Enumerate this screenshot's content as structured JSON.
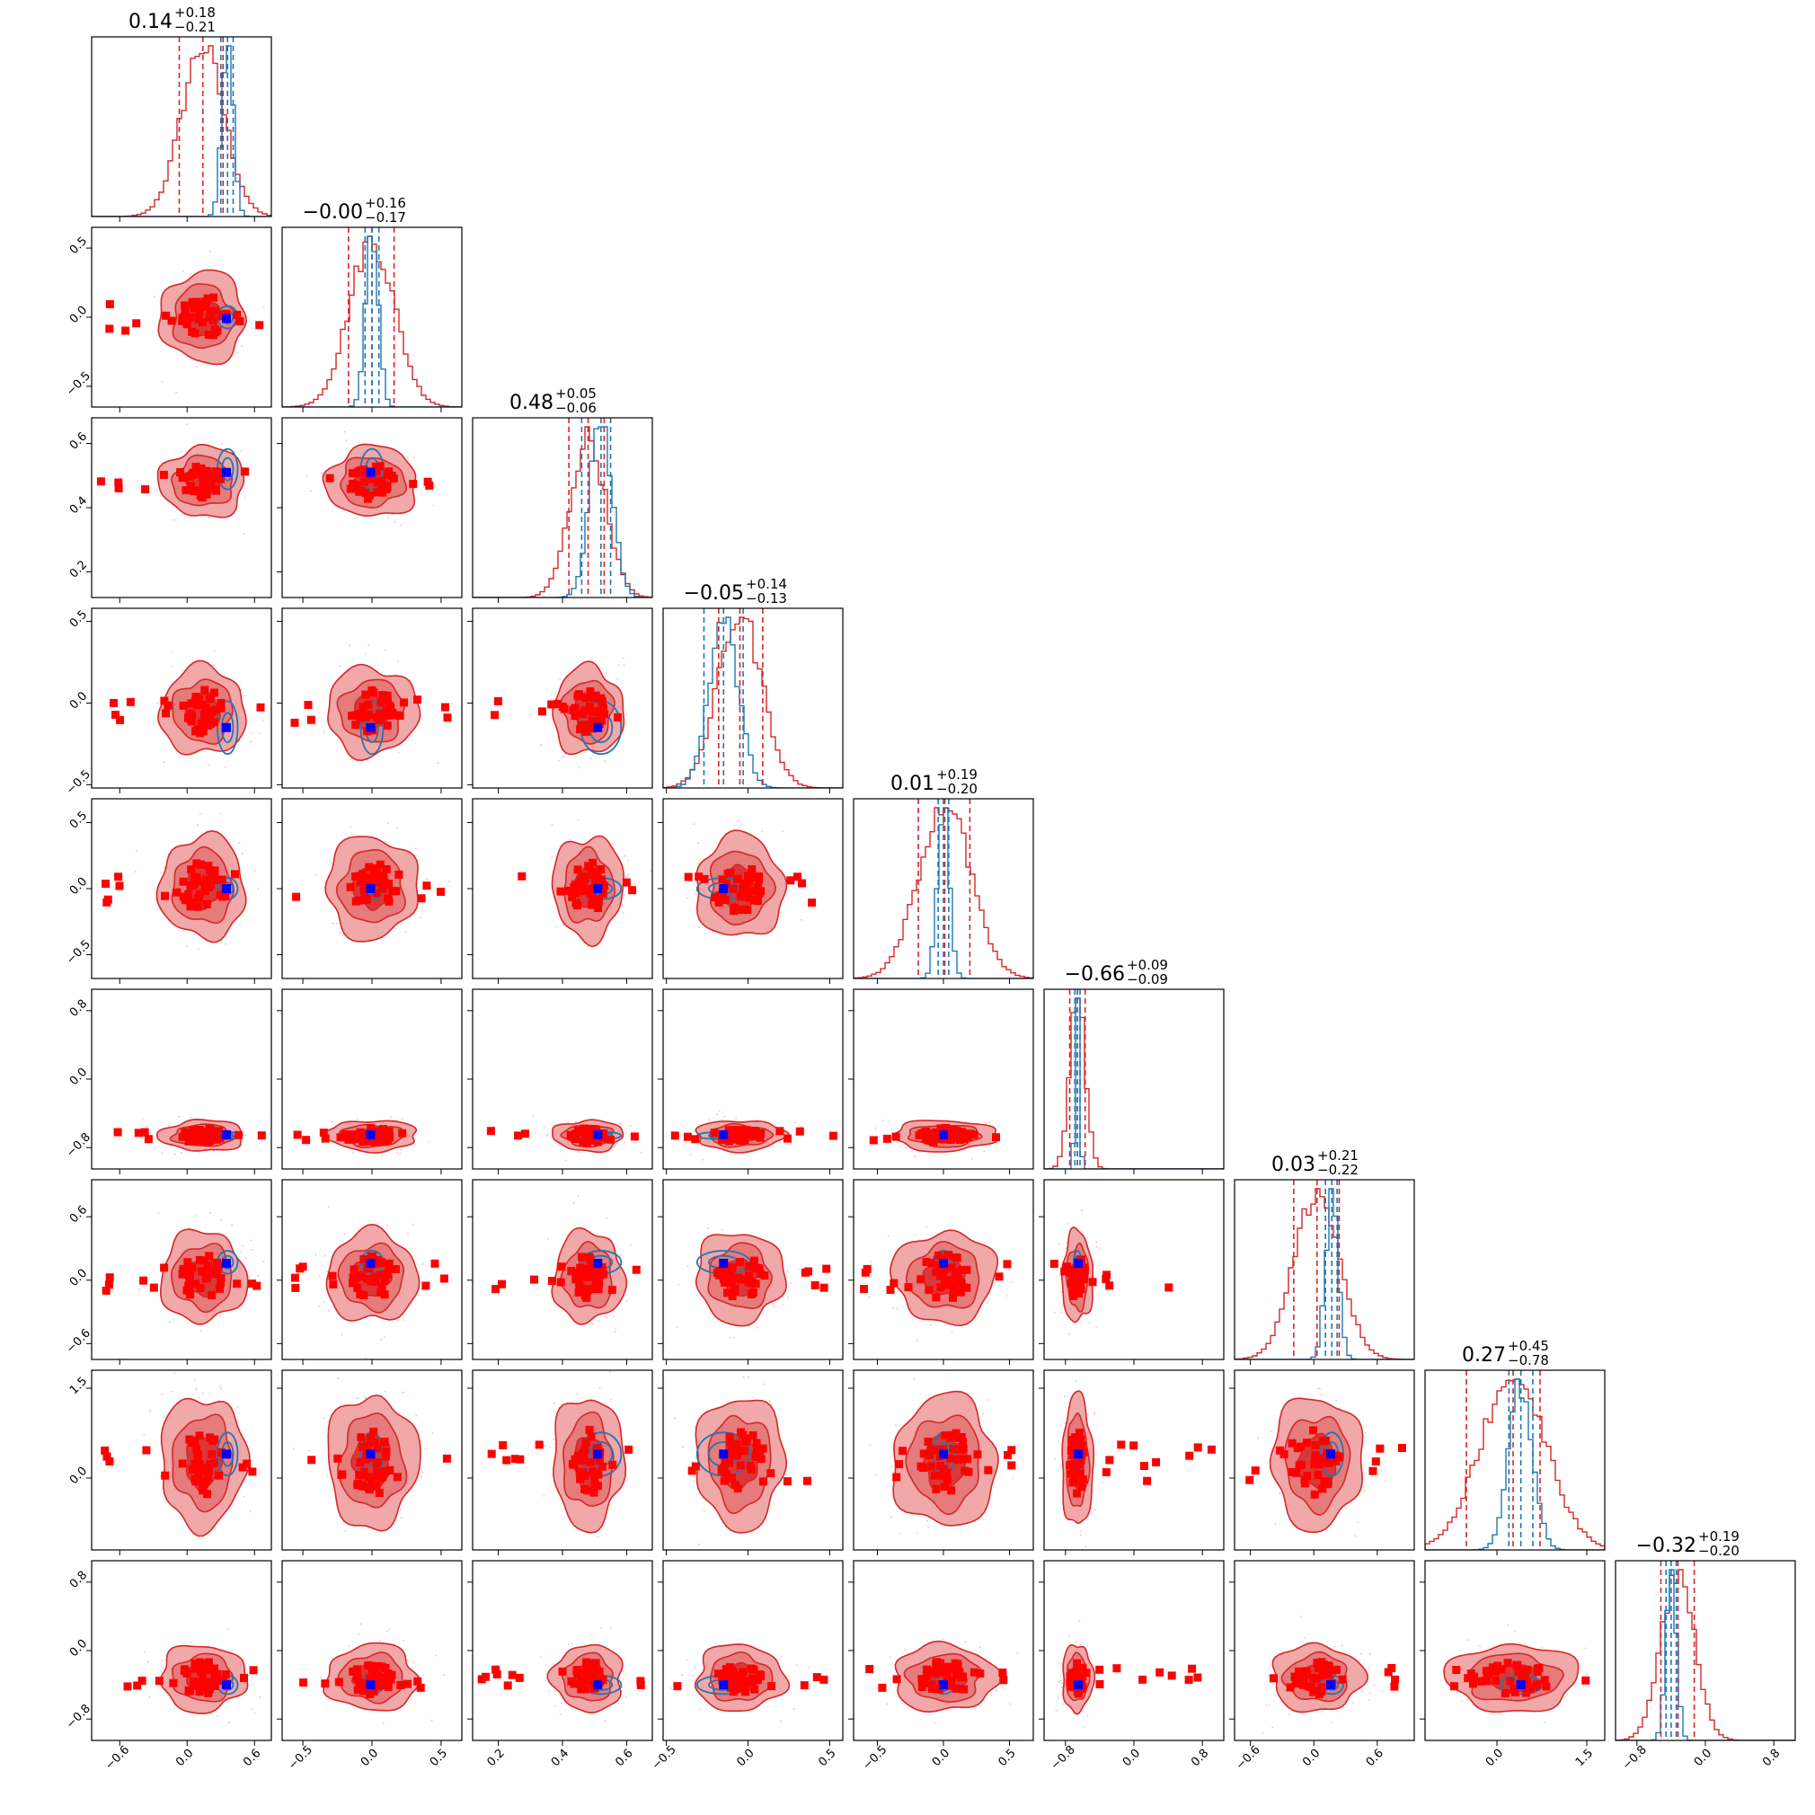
{
  "chart_data": {
    "type": "corner",
    "n_params": 9,
    "diagonal_titles": [
      {
        "median": "0.14",
        "plus": "+0.18",
        "minus": "−0.21"
      },
      {
        "median": "−0.00",
        "plus": "+0.16",
        "minus": "−0.17"
      },
      {
        "median": "0.48",
        "plus": "+0.05",
        "minus": "−0.06"
      },
      {
        "median": "−0.05",
        "plus": "+0.14",
        "minus": "−0.13"
      },
      {
        "median": "0.01",
        "plus": "+0.19",
        "minus": "−0.20"
      },
      {
        "median": "−0.66",
        "plus": "+0.09",
        "minus": "−0.09"
      },
      {
        "median": "0.03",
        "plus": "+0.21",
        "minus": "−0.22"
      },
      {
        "median": "0.27",
        "plus": "+0.45",
        "minus": "−0.78"
      },
      {
        "median": "−0.32",
        "plus": "+0.19",
        "minus": "−0.20"
      }
    ],
    "ranges": [
      [
        -0.85,
        0.75
      ],
      [
        -0.65,
        0.65
      ],
      [
        0.12,
        0.68
      ],
      [
        -0.52,
        0.58
      ],
      [
        -0.68,
        0.68
      ],
      [
        -1.05,
        1.05
      ],
      [
        -0.75,
        0.95
      ],
      [
        -1.2,
        1.8
      ],
      [
        -1.05,
        1.05
      ]
    ],
    "ticks": [
      {
        "values": [
          -0.6,
          0.0,
          0.6
        ],
        "labels": [
          "−0.6",
          "0.0",
          "0.6"
        ]
      },
      {
        "values": [
          -0.5,
          0.0,
          0.5
        ],
        "labels": [
          "−0.5",
          "0.0",
          "0.5"
        ]
      },
      {
        "values": [
          0.2,
          0.4,
          0.6
        ],
        "labels": [
          "0.2",
          "0.4",
          "0.6"
        ]
      },
      {
        "values": [
          -0.5,
          0.0,
          0.5
        ],
        "labels": [
          "−0.5",
          "0.0",
          "0.5"
        ]
      },
      {
        "values": [
          -0.5,
          0.0,
          0.5
        ],
        "labels": [
          "−0.5",
          "0.0",
          "0.5"
        ]
      },
      {
        "values": [
          -0.8,
          0.0,
          0.8
        ],
        "labels": [
          "−0.8",
          "0.0",
          "0.8"
        ]
      },
      {
        "values": [
          -0.6,
          0.0,
          0.6
        ],
        "labels": [
          "−0.6",
          "0.0",
          "0.6"
        ]
      },
      {
        "values": [
          0.0,
          1.5
        ],
        "labels": [
          "0.0",
          "1.5"
        ]
      },
      {
        "values": [
          -0.8,
          0.0,
          0.8
        ],
        "labels": [
          "−0.8",
          "0.0",
          "0.8"
        ]
      }
    ],
    "red_posterior": {
      "centers": [
        0.14,
        0.0,
        0.48,
        -0.05,
        0.01,
        -0.66,
        0.03,
        0.27,
        -0.32
      ],
      "sigmas": [
        0.19,
        0.165,
        0.055,
        0.135,
        0.195,
        0.09,
        0.215,
        0.55,
        0.195
      ],
      "quantiles_16_50_84": [
        [
          -0.07,
          0.14,
          0.32
        ],
        [
          -0.17,
          0.0,
          0.16
        ],
        [
          0.42,
          0.48,
          0.53
        ],
        [
          -0.18,
          -0.05,
          0.09
        ],
        [
          -0.19,
          0.01,
          0.2
        ],
        [
          -0.75,
          -0.66,
          -0.57
        ],
        [
          -0.19,
          0.03,
          0.24
        ],
        [
          -0.51,
          0.27,
          0.72
        ],
        [
          -0.52,
          -0.32,
          -0.13
        ]
      ]
    },
    "blue_posterior": {
      "centers": [
        0.36,
        0.0,
        0.52,
        -0.15,
        0.0,
        -0.66,
        0.17,
        0.4,
        -0.4
      ],
      "sigmas": [
        0.05,
        0.045,
        0.035,
        0.09,
        0.045,
        0.025,
        0.06,
        0.2,
        0.06
      ],
      "quantiles_16_50_84": [
        [
          0.3,
          0.36,
          0.41
        ],
        [
          -0.05,
          0.0,
          0.05
        ],
        [
          0.46,
          0.52,
          0.55
        ],
        [
          -0.27,
          -0.15,
          -0.03
        ],
        [
          -0.04,
          0.0,
          0.04
        ],
        [
          -0.69,
          -0.66,
          -0.63
        ],
        [
          0.11,
          0.17,
          0.22
        ],
        [
          0.2,
          0.4,
          0.6
        ],
        [
          -0.46,
          -0.4,
          -0.34
        ]
      ]
    },
    "truth_values": [
      0.35,
      -0.01,
      0.51,
      -0.15,
      0.0,
      -0.65,
      0.16,
      0.4,
      -0.4
    ],
    "red_markers": "clusters of red square markers scattered across each 2D panel",
    "colors": {
      "red_line": "#d62728",
      "red_fill_outer": "#f0a8a8",
      "red_fill_mid": "#e57b7b",
      "red_fill_inner": "#d93838",
      "red_marker": "#ff0000",
      "blue_line": "#1f77b4",
      "truth_marker": "#0000ff",
      "frame": "#000000"
    },
    "grid": false,
    "legend": "none"
  }
}
